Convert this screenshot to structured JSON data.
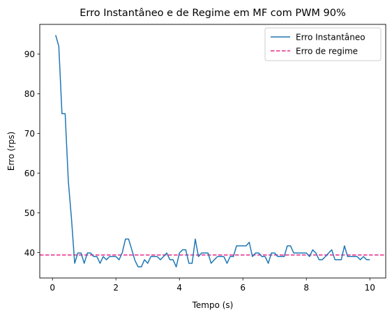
{
  "chart_data": {
    "type": "line",
    "title": "Erro Instantâneo e de Regime em MF com PWM 90%",
    "xlabel": "Tempo (s)",
    "ylabel": "Erro (rps)",
    "xlim": [
      -0.4,
      10.5
    ],
    "ylim": [
      33.6,
      97.5
    ],
    "xticks": [
      0,
      2,
      4,
      6,
      8,
      10
    ],
    "yticks": [
      40,
      50,
      60,
      70,
      80,
      90
    ],
    "grid": false,
    "legend_position": "top-right",
    "series": [
      {
        "name": "Erro Instantâneo",
        "color": "#1f77b4",
        "style": "solid",
        "x": [
          0.1,
          0.2,
          0.3,
          0.4,
          0.5,
          0.6,
          0.7,
          0.8,
          0.9,
          1.0,
          1.1,
          1.2,
          1.3,
          1.4,
          1.5,
          1.6,
          1.7,
          1.8,
          1.9,
          2.0,
          2.1,
          2.2,
          2.3,
          2.4,
          2.5,
          2.6,
          2.7,
          2.8,
          2.9,
          3.0,
          3.1,
          3.2,
          3.3,
          3.4,
          3.5,
          3.6,
          3.7,
          3.8,
          3.9,
          4.0,
          4.1,
          4.2,
          4.3,
          4.4,
          4.5,
          4.6,
          4.7,
          4.8,
          4.9,
          5.0,
          5.1,
          5.2,
          5.3,
          5.4,
          5.5,
          5.6,
          5.7,
          5.8,
          5.9,
          6.0,
          6.1,
          6.2,
          6.3,
          6.4,
          6.5,
          6.6,
          6.7,
          6.8,
          6.9,
          7.0,
          7.1,
          7.2,
          7.3,
          7.4,
          7.5,
          7.6,
          7.7,
          7.8,
          7.9,
          8.0,
          8.1,
          8.2,
          8.3,
          8.4,
          8.5,
          8.6,
          8.7,
          8.8,
          8.9,
          9.0,
          9.1,
          9.2,
          9.3,
          9.4,
          9.5,
          9.6,
          9.7,
          9.8,
          9.9,
          10.0
        ],
        "y": [
          94.8,
          92.0,
          75.0,
          75.0,
          58.0,
          48.5,
          37.3,
          39.9,
          39.9,
          37.3,
          39.9,
          39.9,
          39.0,
          39.0,
          37.3,
          39.0,
          38.2,
          39.0,
          39.0,
          39.0,
          38.2,
          40.0,
          43.4,
          43.4,
          40.7,
          38.0,
          36.4,
          36.4,
          38.2,
          37.3,
          39.0,
          39.0,
          39.0,
          38.2,
          39.0,
          39.9,
          38.2,
          38.2,
          36.4,
          39.9,
          40.7,
          40.7,
          37.3,
          37.3,
          43.4,
          39.0,
          39.9,
          39.9,
          39.9,
          37.3,
          38.2,
          39.0,
          39.0,
          39.0,
          37.3,
          39.0,
          39.0,
          41.7,
          41.7,
          41.7,
          41.7,
          42.6,
          39.0,
          39.9,
          39.9,
          39.0,
          39.0,
          37.3,
          39.9,
          39.9,
          39.0,
          39.0,
          39.0,
          41.7,
          41.7,
          39.9,
          39.9,
          39.9,
          39.9,
          39.9,
          39.0,
          40.7,
          39.9,
          38.2,
          38.2,
          39.0,
          39.9,
          40.7,
          38.2,
          38.2,
          38.2,
          41.7,
          39.0,
          39.0,
          39.0,
          39.0,
          38.2,
          39.0,
          38.2,
          38.2
        ]
      },
      {
        "name": "Erro de regime",
        "color": "#e7298a",
        "style": "dashed",
        "value": 39.4
      }
    ]
  }
}
